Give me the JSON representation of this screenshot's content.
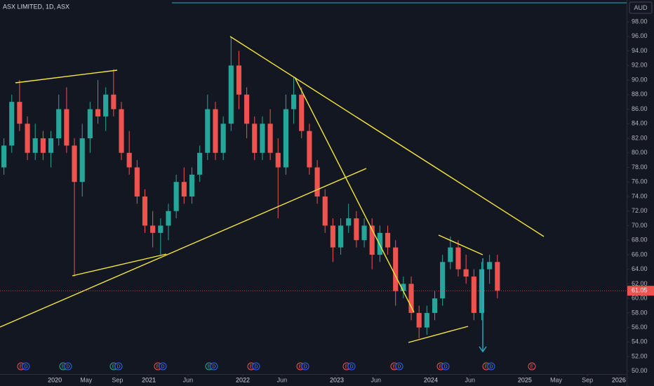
{
  "chart_data": {
    "type": "candlestick",
    "title": "ASX LIMITED, 1D, ASX",
    "currency": "AUD",
    "x": [
      "2019-06",
      "2019-07",
      "2019-08",
      "2019-09",
      "2019-10",
      "2019-11",
      "2019-12",
      "2020-01",
      "2020-02",
      "2020-03",
      "2020-04",
      "2020-05",
      "2020-06",
      "2020-07",
      "2020-08",
      "2020-09",
      "2020-10",
      "2020-11",
      "2020-12",
      "2021-01",
      "2021-02",
      "2021-03",
      "2021-04",
      "2021-05",
      "2021-06",
      "2021-07",
      "2021-08",
      "2021-09",
      "2021-10",
      "2021-11",
      "2021-12",
      "2022-01",
      "2022-02",
      "2022-03",
      "2022-04",
      "2022-05",
      "2022-06",
      "2022-07",
      "2022-08",
      "2022-09",
      "2022-10",
      "2022-11",
      "2022-12",
      "2023-01",
      "2023-02",
      "2023-03",
      "2023-04",
      "2023-05",
      "2023-06",
      "2023-07",
      "2023-08",
      "2023-09",
      "2023-10",
      "2023-11",
      "2023-12",
      "2024-01",
      "2024-02",
      "2024-03",
      "2024-04",
      "2024-05",
      "2024-06",
      "2024-07",
      "2024-08",
      "2024-09"
    ],
    "ohlc": [
      [
        78,
        82,
        77,
        81
      ],
      [
        81,
        88,
        80,
        87
      ],
      [
        87,
        90,
        83,
        84
      ],
      [
        84,
        85,
        79,
        80
      ],
      [
        80,
        84,
        79,
        82
      ],
      [
        82,
        83,
        79,
        80
      ],
      [
        80,
        83,
        78,
        82
      ],
      [
        82,
        88,
        81,
        86
      ],
      [
        86,
        89,
        80,
        81
      ],
      [
        81,
        82,
        63,
        76
      ],
      [
        76,
        84,
        74,
        82
      ],
      [
        82,
        87,
        80,
        86
      ],
      [
        86,
        90,
        84,
        85
      ],
      [
        85,
        89,
        83,
        88
      ],
      [
        88,
        91.5,
        85,
        86
      ],
      [
        86,
        87,
        79,
        80
      ],
      [
        80,
        83,
        77,
        78
      ],
      [
        78,
        79,
        73,
        74
      ],
      [
        74,
        75,
        69,
        70
      ],
      [
        70,
        72,
        67,
        69
      ],
      [
        69,
        71,
        66,
        70
      ],
      [
        70,
        73,
        68,
        72
      ],
      [
        72,
        77,
        71,
        76
      ],
      [
        76,
        78,
        73,
        74
      ],
      [
        74,
        78,
        73,
        77
      ],
      [
        77,
        81,
        76,
        80
      ],
      [
        80,
        88,
        79,
        86
      ],
      [
        86,
        87,
        79,
        80
      ],
      [
        80,
        85,
        79,
        84
      ],
      [
        84,
        96,
        83,
        92
      ],
      [
        92,
        94,
        86,
        88
      ],
      [
        88,
        89,
        82,
        84
      ],
      [
        84,
        85,
        79,
        80
      ],
      [
        80,
        85,
        79,
        84
      ],
      [
        84,
        86,
        79,
        80
      ],
      [
        80,
        82,
        71,
        78
      ],
      [
        78,
        88,
        77,
        86
      ],
      [
        86,
        90.5,
        84,
        88
      ],
      [
        88,
        89,
        82,
        83
      ],
      [
        83,
        84,
        77,
        78
      ],
      [
        78,
        79,
        73,
        74
      ],
      [
        74,
        75,
        69,
        70
      ],
      [
        70,
        71,
        65,
        67
      ],
      [
        67,
        71,
        66,
        70
      ],
      [
        70,
        73,
        69,
        71
      ],
      [
        71,
        72,
        67,
        68
      ],
      [
        68,
        71,
        67,
        70
      ],
      [
        70,
        71,
        64,
        66
      ],
      [
        66,
        70,
        65,
        69
      ],
      [
        69,
        70,
        66,
        67
      ],
      [
        67,
        68,
        59,
        61
      ],
      [
        61,
        63,
        60,
        62
      ],
      [
        62,
        63,
        57,
        58
      ],
      [
        58,
        59,
        54.5,
        56
      ],
      [
        56,
        59,
        55,
        58
      ],
      [
        58,
        61,
        57,
        60
      ],
      [
        60,
        66,
        59,
        65
      ],
      [
        65,
        68.5,
        64,
        67
      ],
      [
        67,
        68,
        63,
        64
      ],
      [
        64,
        66,
        62,
        63
      ],
      [
        63,
        64,
        57,
        58
      ],
      [
        58,
        65,
        57,
        64
      ],
      [
        64,
        66,
        62,
        65
      ],
      [
        65,
        66,
        60,
        61.05
      ]
    ],
    "up_color": "#26a69a",
    "down_color": "#ef5350",
    "last_price": 61.05,
    "xlim": [
      "2019-06",
      "2026-02"
    ],
    "xticks": [
      {
        "value": "2020-01",
        "label": "2020"
      },
      {
        "value": "2020-05",
        "label": "May"
      },
      {
        "value": "2020-09",
        "label": "Sep"
      },
      {
        "value": "2021-01",
        "label": "2021"
      },
      {
        "value": "2021-06",
        "label": "Jun"
      },
      {
        "value": "2022-01",
        "label": "2022"
      },
      {
        "value": "2022-06",
        "label": "Jun"
      },
      {
        "value": "2023-01",
        "label": "2023"
      },
      {
        "value": "2023-06",
        "label": "Jun"
      },
      {
        "value": "2024-01",
        "label": "2024"
      },
      {
        "value": "2024-06",
        "label": "Jun"
      },
      {
        "value": "2025-01",
        "label": "2025"
      },
      {
        "value": "2025-05",
        "label": "May"
      },
      {
        "value": "2025-09",
        "label": "Sep"
      },
      {
        "value": "2026-01",
        "label": "2026"
      }
    ],
    "ylim": [
      49.6,
      101
    ],
    "yticks": [
      {
        "value": 50,
        "label": "50.00"
      },
      {
        "value": 52,
        "label": "52.00"
      },
      {
        "value": 54,
        "label": "54.00"
      },
      {
        "value": 56,
        "label": "56.00"
      },
      {
        "value": 58,
        "label": "58.00"
      },
      {
        "value": 60,
        "label": "60.00"
      },
      {
        "value": 62,
        "label": "62.00"
      },
      {
        "value": 64,
        "label": "64.00"
      },
      {
        "value": 66,
        "label": "66.00"
      },
      {
        "value": 68,
        "label": "68.00"
      },
      {
        "value": 70,
        "label": "70.00"
      },
      {
        "value": 72,
        "label": "72.00"
      },
      {
        "value": 74,
        "label": "74.00"
      },
      {
        "value": 76,
        "label": "76.00"
      },
      {
        "value": 78,
        "label": "78.00"
      },
      {
        "value": 80,
        "label": "80.00"
      },
      {
        "value": 82,
        "label": "82.00"
      },
      {
        "value": 84,
        "label": "84.00"
      },
      {
        "value": 86,
        "label": "86.00"
      },
      {
        "value": 88,
        "label": "88.00"
      },
      {
        "value": 90,
        "label": "90.00"
      },
      {
        "value": 92,
        "label": "92.00"
      },
      {
        "value": 94,
        "label": "94.00"
      },
      {
        "value": 96,
        "label": "96.00"
      },
      {
        "value": 98,
        "label": "98.00"
      }
    ],
    "events": [
      [
        "E",
        "D"
      ],
      [
        "E",
        "D"
      ],
      [
        "E",
        "D"
      ],
      [
        "E",
        "D"
      ],
      [
        "E",
        "D"
      ],
      [
        "E",
        "D"
      ],
      [
        "E",
        "D"
      ],
      [
        "E",
        "D"
      ],
      [
        "E",
        "D"
      ],
      [
        "E",
        "D"
      ],
      [
        "E",
        "D"
      ],
      [
        "E"
      ]
    ]
  }
}
